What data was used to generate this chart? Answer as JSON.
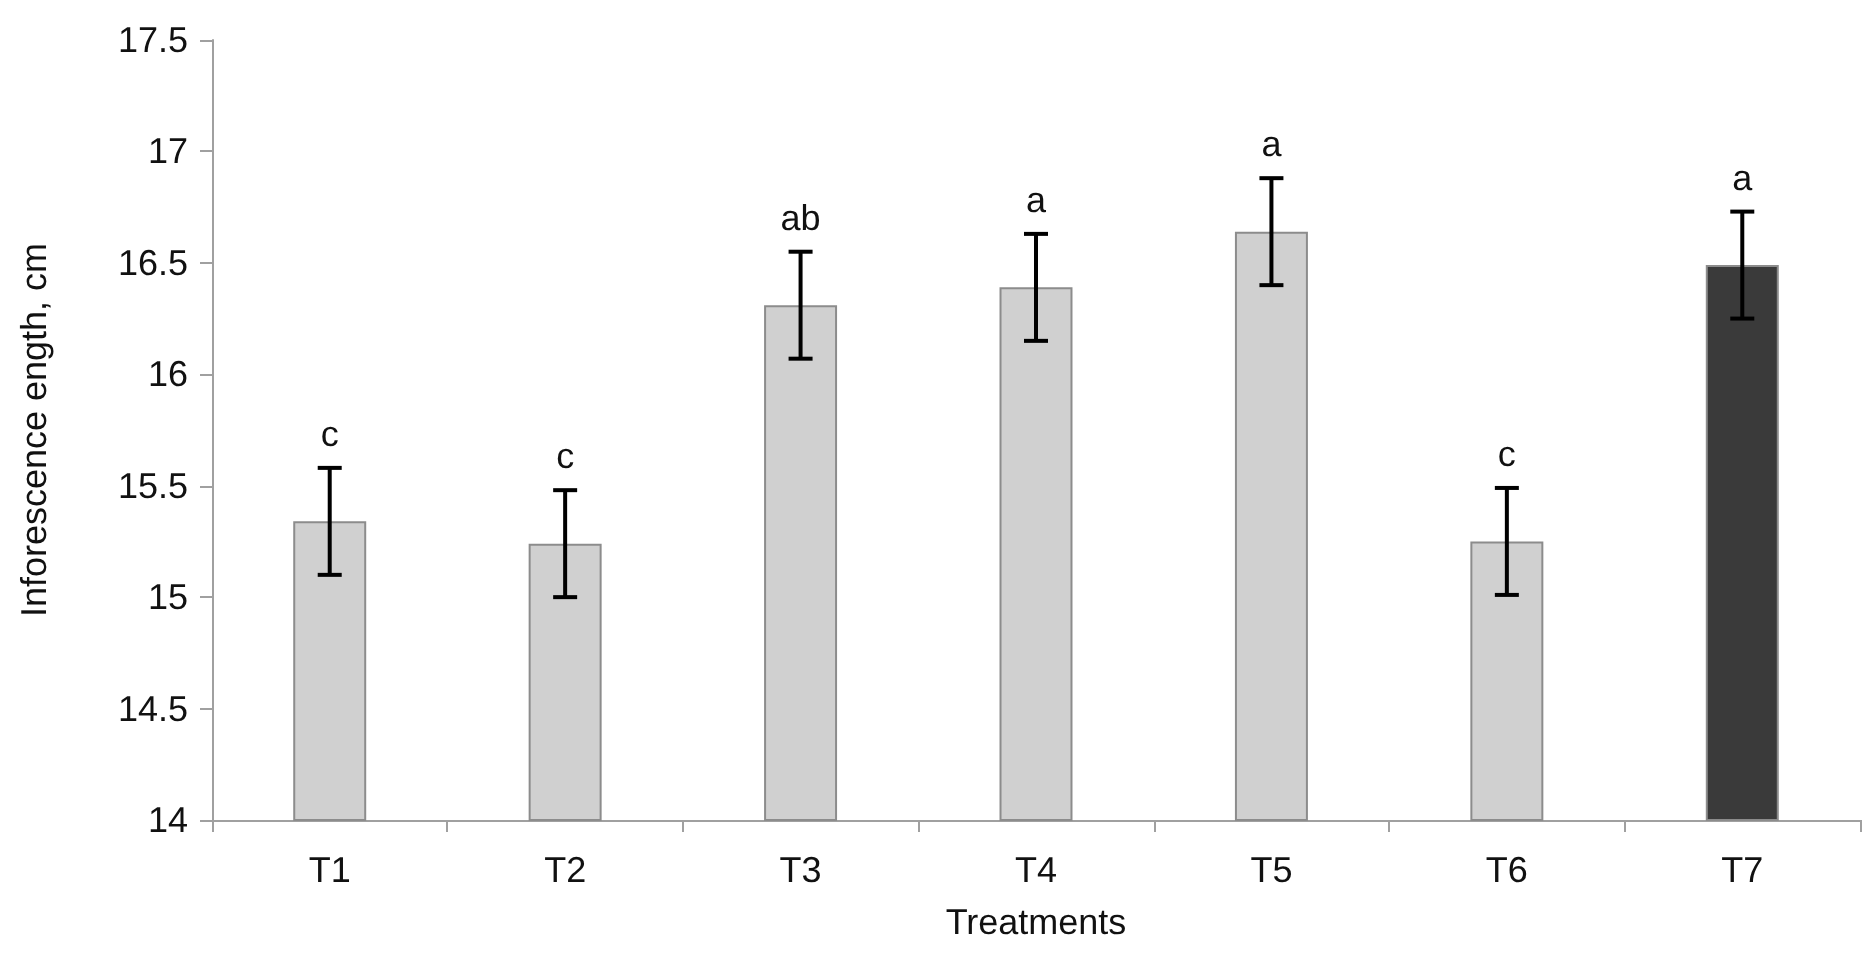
{
  "chart_data": {
    "type": "bar",
    "xlabel": "Treatments",
    "ylabel": "Inforescence ength, cm",
    "categories": [
      "T1",
      "T2",
      "T3",
      "T4",
      "T5",
      "T6",
      "T7"
    ],
    "values": [
      15.34,
      15.24,
      16.31,
      16.39,
      16.64,
      15.25,
      16.49
    ],
    "colors": [
      "#d0d0d0",
      "#d0d0d0",
      "#d0d0d0",
      "#d0d0d0",
      "#d0d0d0",
      "#d0d0d0",
      "#3a3a3a"
    ],
    "errors": [
      0.24,
      0.24,
      0.24,
      0.24,
      0.24,
      0.24,
      0.24
    ],
    "ylim": [
      14,
      17.5
    ],
    "yticks": [
      14,
      14.5,
      15,
      15.5,
      16,
      16.5,
      17,
      17.5
    ],
    "grid": false,
    "annotations": [
      {
        "text": "c",
        "x": "T1",
        "y": 15.58
      },
      {
        "text": "c",
        "x": "T2",
        "y": 15.48
      },
      {
        "text": "ab",
        "x": "T3",
        "y": 16.55
      },
      {
        "text": "a",
        "x": "T4",
        "y": 16.63
      },
      {
        "text": "a",
        "x": "T5",
        "y": 16.88
      },
      {
        "text": "c",
        "x": "T6",
        "y": 15.49
      },
      {
        "text": "a",
        "x": "T7",
        "y": 16.73
      }
    ]
  }
}
